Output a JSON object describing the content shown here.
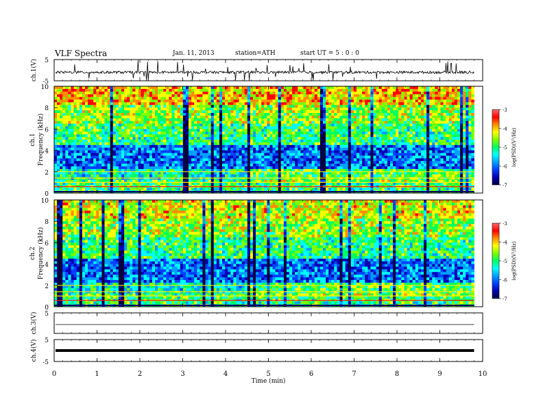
{
  "header": {
    "title": "VLF  Spectra",
    "date": "Jan. 11, 2013",
    "station": "station=ATH",
    "start": "start  UT =   5  : 0  : 0"
  },
  "colorbar": {
    "label": "log(PSD)(V²/Hz)",
    "ticks": [
      -3,
      -4,
      -5,
      -6,
      -7
    ],
    "colors": [
      "#ff6a6a",
      "#ff0000",
      "#ff8c00",
      "#ffff00",
      "#7fff00",
      "#00ff60",
      "#00ffff",
      "#00a0ff",
      "#0040ff",
      "#0000b0",
      "#000040"
    ]
  },
  "chart_data": [
    {
      "type": "line",
      "panel": "ch1-waveform",
      "ylabel": "ch.1(V)",
      "yticks": [
        5,
        -5
      ],
      "ylim": [
        -5,
        5
      ],
      "xlim": [
        0,
        10
      ],
      "description_level": "noise around -1 V with frequent spikes"
    },
    {
      "type": "heatmap",
      "panel": "ch1-spectrogram",
      "ylabel_top": "ch.1",
      "ylabel": "Frequency  (kHz)",
      "yticks": [
        0,
        2,
        4,
        6,
        8,
        10
      ],
      "ylim": [
        0,
        10
      ],
      "xlim": [
        0,
        10
      ],
      "zlim": [
        -7,
        -3
      ],
      "data_end_min": 9.8
    },
    {
      "type": "heatmap",
      "panel": "ch2-spectrogram",
      "ylabel_top": "ch.2",
      "ylabel": "Frequency  (kHz)",
      "yticks": [
        0,
        2,
        4,
        6,
        8,
        10
      ],
      "ylim": [
        0,
        10
      ],
      "xlim": [
        0,
        10
      ],
      "zlim": [
        -7,
        -3
      ],
      "data_end_min": 9.8
    },
    {
      "type": "line",
      "panel": "ch3-waveform",
      "ylabel": "ch.3(V)",
      "yticks": [
        5
      ],
      "ylim": [
        -5,
        5
      ],
      "xlim": [
        0,
        10
      ],
      "level": 0
    },
    {
      "type": "line",
      "panel": "ch4-waveform",
      "ylabel": "ch.4(V)",
      "yticks": [
        5,
        -5
      ],
      "ylim": [
        -5,
        5
      ],
      "xlim": [
        0,
        10
      ],
      "level": 0
    }
  ],
  "xaxis": {
    "label": "Time  (min)",
    "ticks": [
      0,
      1,
      2,
      3,
      4,
      5,
      6,
      7,
      8,
      9,
      10
    ]
  }
}
